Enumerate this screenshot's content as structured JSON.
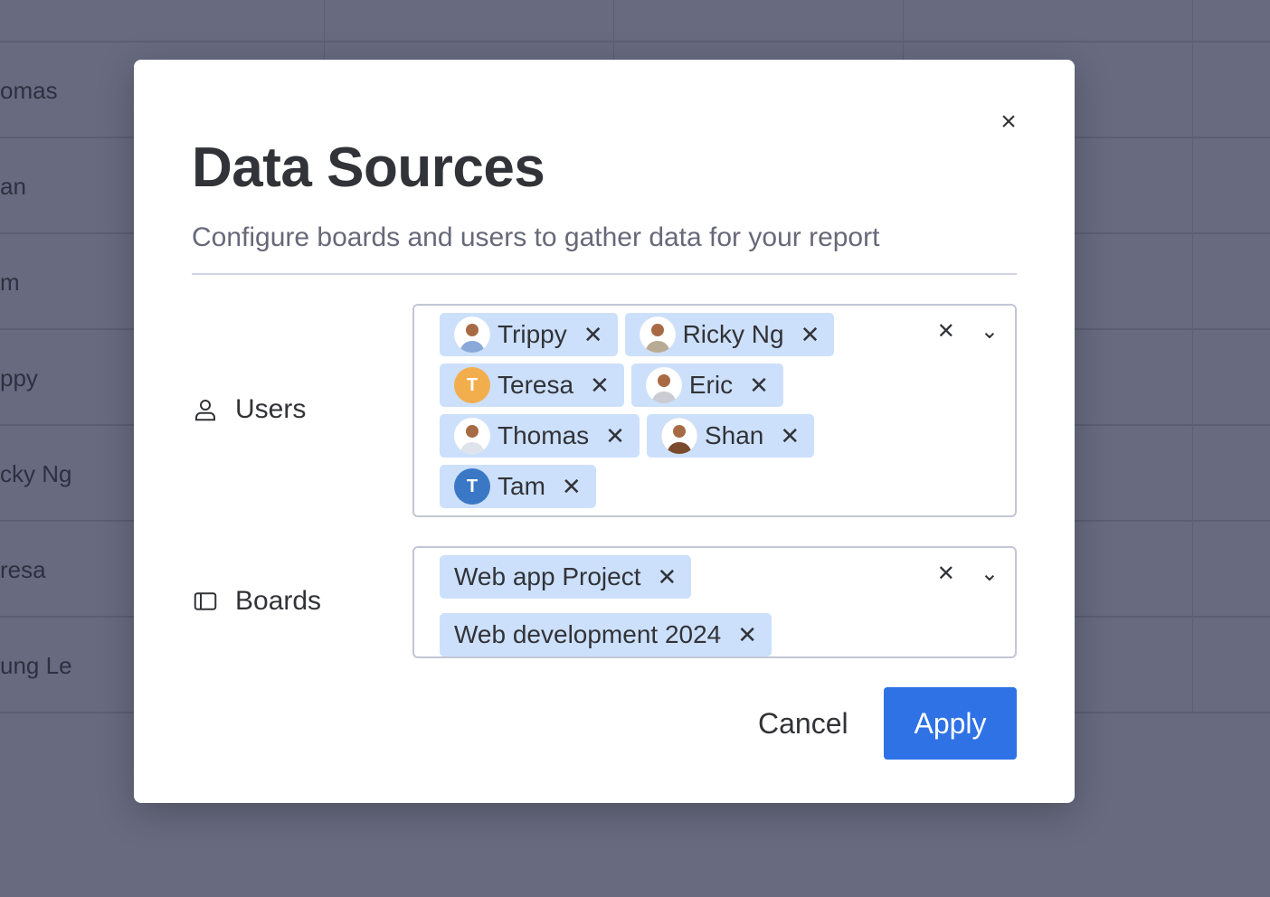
{
  "background": {
    "rows": [
      "omas",
      "an",
      "m",
      "ppy",
      "cky Ng",
      "resa",
      "ung Le"
    ]
  },
  "dialog": {
    "title": "Data Sources",
    "subtitle": "Configure boards and users to gather data for your report",
    "users_label": "Users",
    "boards_label": "Boards",
    "users": [
      {
        "name": "Trippy",
        "avatar": "photo",
        "color": "#8aa8d8"
      },
      {
        "name": "Ricky Ng",
        "avatar": "photo",
        "color": "#b8ab94"
      },
      {
        "name": "Teresa",
        "avatar": "T",
        "color": "#f2ae4d"
      },
      {
        "name": "Eric",
        "avatar": "photo",
        "color": "#c9ccd2"
      },
      {
        "name": "Thomas",
        "avatar": "photo",
        "color": "#dfe4ec"
      },
      {
        "name": "Shan",
        "avatar": "photo",
        "color": "#7a4a2c"
      },
      {
        "name": "Tam",
        "avatar": "T",
        "color": "#3a78c6"
      }
    ],
    "boards": [
      "Web app Project",
      "Web development 2024"
    ],
    "cancel_label": "Cancel",
    "apply_label": "Apply",
    "accent": "#2f72e5",
    "chip_bg": "#cce0fb"
  }
}
